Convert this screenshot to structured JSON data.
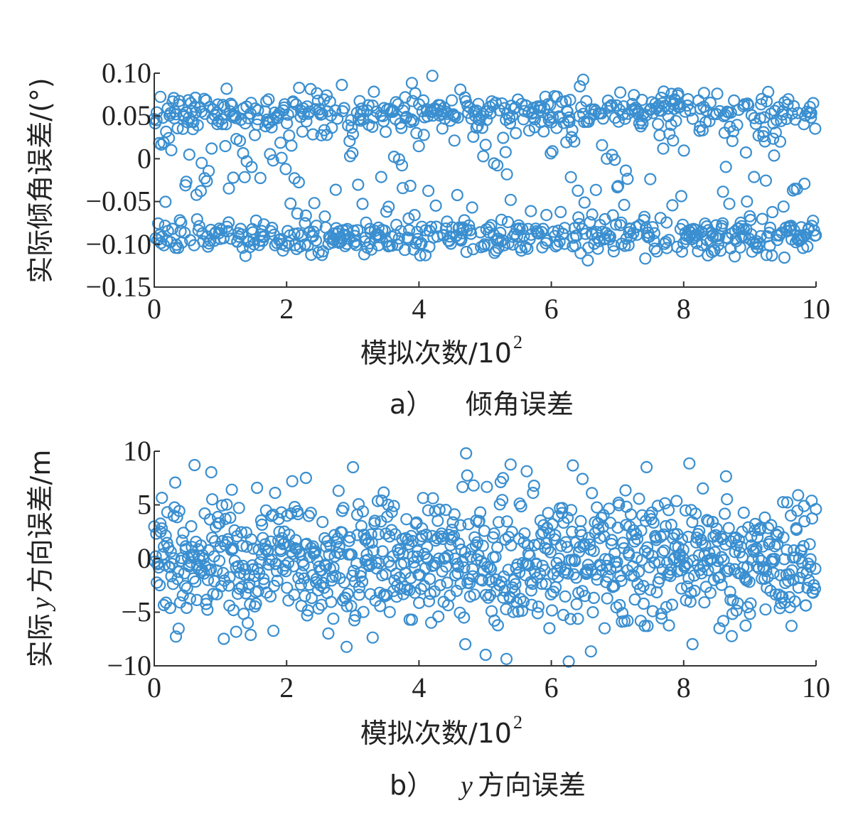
{
  "colors": {
    "marker": "#3a8fd0",
    "axis": "#333333",
    "text": "#222222"
  },
  "chart_data": [
    {
      "type": "scatter",
      "id": "a",
      "caption_letter": "a）",
      "caption_text": "倾角误差",
      "xlabel": "模拟次数/10",
      "xlabel_sup": "2",
      "ylabel": "实际倾角误差/(°)",
      "xlim": [
        0,
        10
      ],
      "ylim": [
        -0.15,
        0.1
      ],
      "xticks": [
        "0",
        "2",
        "4",
        "6",
        "8",
        "10"
      ],
      "yticks": [
        "0.10",
        "0.05",
        "0",
        "-0.05",
        "-0.10",
        "-0.15"
      ],
      "n_points": 1000,
      "clusters": [
        {
          "center": 0.055,
          "spread": 0.012,
          "share": 0.42
        },
        {
          "center": -0.092,
          "spread": 0.01,
          "share": 0.4
        },
        {
          "center": -0.02,
          "spread": 0.035,
          "share": 0.18
        }
      ],
      "marker": "circle",
      "grid": false
    },
    {
      "type": "scatter",
      "id": "b",
      "caption_letter": "b）",
      "caption_italic": "y",
      "caption_text": "方向误差",
      "xlabel": "模拟次数/10",
      "xlabel_sup": "2",
      "ylabel_italic": "y",
      "ylabel_pre": "实际",
      "ylabel_post": "方向误差/m",
      "xlim": [
        0,
        10
      ],
      "ylim": [
        -10,
        10
      ],
      "xticks": [
        "0",
        "2",
        "4",
        "6",
        "8",
        "10"
      ],
      "yticks": [
        "10",
        "5",
        "0",
        "-5",
        "-10"
      ],
      "n_points": 1000,
      "distribution": {
        "mean": 0,
        "std": 3.2,
        "range": [
          -10,
          10
        ]
      },
      "marker": "circle",
      "grid": false
    }
  ]
}
